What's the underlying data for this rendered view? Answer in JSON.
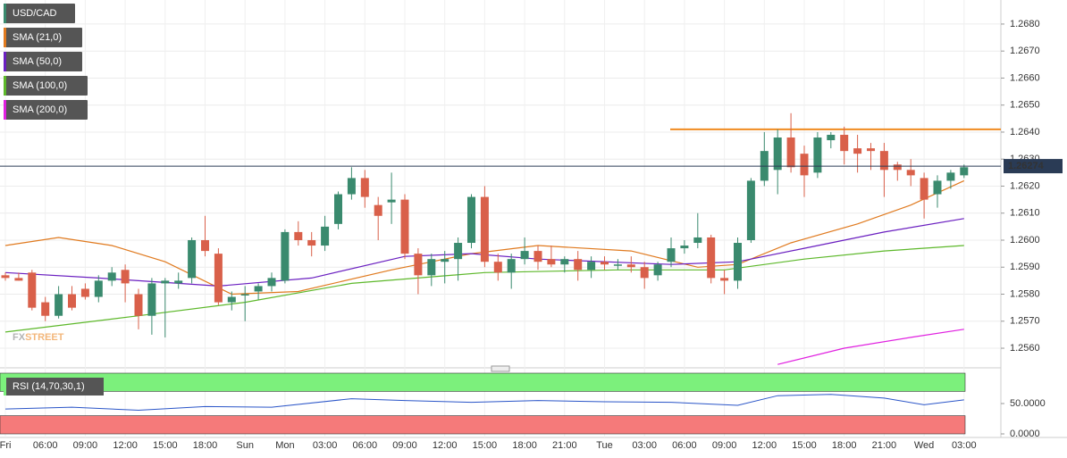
{
  "chart_data": [
    {
      "type": "candlestick",
      "title": "USD/CAD",
      "categories": [
        "Fri",
        null,
        null,
        "06:00",
        null,
        null,
        "09:00",
        null,
        null,
        "12:00",
        null,
        null,
        "15:00",
        null,
        null,
        "18:00",
        null,
        null,
        "Sun",
        null,
        null,
        "Mon",
        null,
        null,
        "03:00",
        null,
        null,
        "06:00",
        null,
        null,
        "09:00",
        null,
        null,
        "12:00",
        null,
        null,
        "15:00",
        null,
        null,
        "18:00",
        null,
        null,
        "21:00",
        null,
        null,
        "Tue",
        null,
        null,
        "03:00",
        null,
        null,
        "06:00",
        null,
        null,
        "09:00",
        null,
        null,
        "12:00",
        null,
        null,
        "15:00",
        null,
        null,
        "18:00",
        null,
        null,
        "21:00",
        null,
        null,
        "Wed",
        null,
        null,
        "03:00"
      ],
      "open": [
        1.2587,
        1.2586,
        1.2588,
        1.2577,
        1.2572,
        1.258,
        1.2582,
        1.2579,
        1.2585,
        1.2589,
        1.258,
        1.2572,
        1.2584,
        1.2584,
        1.2586,
        1.26,
        1.2595,
        1.2577,
        1.258,
        1.2581,
        1.2583,
        1.2585,
        1.2603,
        1.26,
        1.2598,
        1.2606,
        1.2617,
        1.2623,
        1.2613,
        1.2614,
        1.2615,
        1.2595,
        1.2587,
        1.2592,
        1.2593,
        1.2599,
        1.2616,
        1.2592,
        1.2588,
        1.2593,
        1.2596,
        1.2593,
        1.2591,
        1.2593,
        1.2589,
        1.2592,
        1.2591,
        1.2591,
        1.259,
        1.2587,
        1.2592,
        1.2597,
        1.2599,
        1.2601,
        1.2586,
        1.2585,
        1.26,
        1.2622,
        1.2626,
        1.2638,
        1.2632,
        1.2625,
        1.2637,
        1.2639,
        1.2634,
        1.2634,
        1.2633,
        1.2628,
        1.2626,
        1.2623,
        1.2617,
        1.2622,
        1.2624
      ],
      "high": [
        1.2588,
        1.2588,
        1.2589,
        1.2579,
        1.2583,
        1.2583,
        1.2584,
        1.2587,
        1.259,
        1.2591,
        1.2582,
        1.2586,
        1.2586,
        1.2588,
        1.2601,
        1.2609,
        1.2597,
        1.2581,
        1.2583,
        1.2584,
        1.2588,
        1.2604,
        1.2607,
        1.2603,
        1.2609,
        1.2618,
        1.2627,
        1.2626,
        1.2616,
        1.2625,
        1.2617,
        1.2597,
        1.2595,
        1.2596,
        1.2601,
        1.2617,
        1.262,
        1.2595,
        1.2595,
        1.2601,
        1.2598,
        1.2598,
        1.2594,
        1.2596,
        1.2594,
        1.2594,
        1.2593,
        1.2594,
        1.2592,
        1.2592,
        1.2601,
        1.26,
        1.261,
        1.2602,
        1.2589,
        1.2601,
        1.2623,
        1.264,
        1.2641,
        1.2647,
        1.2635,
        1.264,
        1.264,
        1.2642,
        1.2639,
        1.2636,
        1.2636,
        1.2629,
        1.263,
        1.2625,
        1.2624,
        1.2626,
        1.2628
      ],
      "low": [
        1.2585,
        1.2585,
        1.2574,
        1.257,
        1.2571,
        1.2574,
        1.2578,
        1.2577,
        1.2583,
        1.2577,
        1.2567,
        1.2565,
        1.2564,
        1.2582,
        1.2584,
        1.2594,
        1.2576,
        1.2574,
        1.257,
        1.2578,
        1.2581,
        1.2584,
        1.2598,
        1.2594,
        1.2596,
        1.2604,
        1.2615,
        1.2612,
        1.26,
        1.2606,
        1.2593,
        1.258,
        1.2583,
        1.2584,
        1.2585,
        1.2597,
        1.259,
        1.2585,
        1.2582,
        1.2591,
        1.2589,
        1.259,
        1.2588,
        1.2585,
        1.2586,
        1.2589,
        1.2589,
        1.2588,
        1.2582,
        1.2585,
        1.259,
        1.2595,
        1.2597,
        1.2584,
        1.258,
        1.2582,
        1.2599,
        1.262,
        1.2617,
        1.2625,
        1.2616,
        1.2623,
        1.2634,
        1.2628,
        1.2625,
        1.2626,
        1.2616,
        1.2622,
        1.262,
        1.2608,
        1.2612,
        1.2619,
        1.2623
      ],
      "close": [
        1.2586,
        1.2585,
        1.2575,
        1.2572,
        1.258,
        1.2575,
        1.2579,
        1.2585,
        1.2588,
        1.2584,
        1.2572,
        1.2584,
        1.2585,
        1.2585,
        1.26,
        1.2596,
        1.2577,
        1.2579,
        1.258,
        1.2583,
        1.2586,
        1.2603,
        1.26,
        1.2598,
        1.2605,
        1.2617,
        1.2623,
        1.2616,
        1.2609,
        1.2615,
        1.2595,
        1.2587,
        1.2593,
        1.2593,
        1.2599,
        1.2616,
        1.2592,
        1.2588,
        1.2593,
        1.2596,
        1.2592,
        1.2591,
        1.2593,
        1.2589,
        1.2592,
        1.2591,
        1.2591,
        1.259,
        1.2586,
        1.2591,
        1.2597,
        1.2598,
        1.2601,
        1.2586,
        1.2585,
        1.2599,
        1.2622,
        1.2633,
        1.2638,
        1.2627,
        1.2624,
        1.2638,
        1.2639,
        1.2633,
        1.2632,
        1.2633,
        1.2626,
        1.2626,
        1.2624,
        1.2615,
        1.2622,
        1.2625,
        1.2627
      ],
      "up_color": "#3a8a6e",
      "down_color": "#d9604a",
      "series": [
        {
          "name": "SMA (21,0)",
          "color": "#e07a1f",
          "x": [
            0,
            4,
            8,
            12,
            17,
            22,
            29,
            35,
            40,
            47,
            52,
            55,
            59,
            64,
            68,
            72
          ],
          "values": [
            1.2598,
            1.2601,
            1.2598,
            1.2592,
            1.258,
            1.2581,
            1.2589,
            1.2595,
            1.2598,
            1.2596,
            1.259,
            1.2591,
            1.2599,
            1.2606,
            1.2613,
            1.2622
          ]
        },
        {
          "name": "SMA (50,0)",
          "color": "#6a1fc0",
          "x": [
            0,
            7,
            16,
            23,
            30,
            35,
            40,
            50,
            55,
            60,
            66,
            72
          ],
          "values": [
            1.2588,
            1.2586,
            1.2583,
            1.2586,
            1.2594,
            1.2595,
            1.2593,
            1.2591,
            1.2592,
            1.2597,
            1.2603,
            1.2608
          ]
        },
        {
          "name": "SMA (100,0)",
          "color": "#5db82a",
          "x": [
            0,
            10,
            18,
            26,
            36,
            46,
            54,
            60,
            66,
            72
          ],
          "values": [
            1.2566,
            1.2572,
            1.2577,
            1.2584,
            1.2588,
            1.2589,
            1.2589,
            1.2593,
            1.2596,
            1.2598
          ]
        },
        {
          "name": "SMA (200,0)",
          "color": "#e020e0",
          "x": [
            58,
            63,
            68,
            72
          ],
          "values": [
            1.2554,
            1.256,
            1.2564,
            1.2567
          ]
        }
      ],
      "resistance": {
        "value": 1.2641,
        "color": "#f08a20"
      },
      "last_price": 1.26274,
      "ylim": [
        1.25534,
        1.26889
      ],
      "yticks": [
        {
          "value": 1.256,
          "label": "1.2560"
        },
        {
          "value": 1.257,
          "label": "1.2570"
        },
        {
          "value": 1.258,
          "label": "1.2580"
        },
        {
          "value": 1.259,
          "label": "1.2590"
        },
        {
          "value": 1.26,
          "label": "1.2600"
        },
        {
          "value": 1.261,
          "label": "1.2610"
        },
        {
          "value": 1.262,
          "label": "1.2620"
        },
        {
          "value": 1.263,
          "label": "1.2630"
        },
        {
          "value": 1.264,
          "label": "1.2640"
        },
        {
          "value": 1.265,
          "label": "1.2650"
        },
        {
          "value": 1.266,
          "label": "1.2660"
        },
        {
          "value": 1.267,
          "label": "1.2670"
        },
        {
          "value": 1.268,
          "label": "1.2680"
        }
      ],
      "grid": true,
      "watermark": {
        "prefix": "FX",
        "suffix": "STREET"
      }
    },
    {
      "type": "line",
      "series": [
        {
          "name": "RSI (14,70,30,1)",
          "color": "#2a55c8",
          "x": [
            0,
            5,
            10,
            15,
            20,
            26,
            30,
            35,
            40,
            45,
            50,
            55,
            58,
            62,
            66,
            69,
            72
          ],
          "values": [
            41,
            44,
            39,
            45,
            44,
            58,
            55,
            52,
            55,
            53,
            52,
            47,
            63,
            65,
            59,
            48,
            56
          ]
        }
      ],
      "bands": [
        {
          "from": 70,
          "to": 100,
          "color": "#7cf07c"
        },
        {
          "from": 0,
          "to": 30,
          "color": "#f57a7a"
        }
      ],
      "ylim": [
        -5.9,
        100
      ],
      "yticks": [
        {
          "value": 50,
          "label": "50.0000"
        },
        {
          "value": 0,
          "label": "0.0000"
        }
      ]
    }
  ]
}
